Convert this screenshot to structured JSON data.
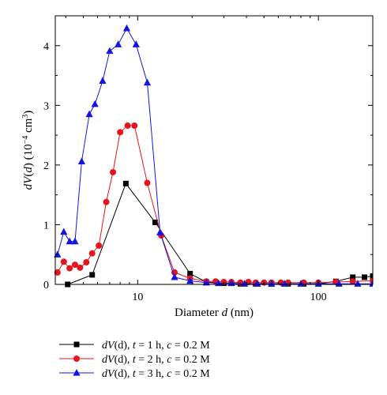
{
  "chart_data": {
    "type": "line",
    "xlabel": {
      "text": "Diameter ",
      "var": "d",
      "unit": " (nm)"
    },
    "ylabel": {
      "text": "dV(d) (10",
      "exp": "−4",
      "unit": " cm",
      "unit_exp": "3",
      "close": ")"
    },
    "xscale": "log",
    "xlim": [
      3.5,
      200
    ],
    "ylim": [
      0,
      4.5
    ],
    "xticks": [
      10,
      100
    ],
    "xtick_labels": [
      "10",
      "100"
    ],
    "yticks": [
      0,
      1,
      2,
      3,
      4
    ],
    "ytick_labels": [
      "0",
      "1",
      "2",
      "3",
      "4"
    ],
    "grid": false,
    "legend_position": "bottom",
    "series": [
      {
        "name": "dV(d), t = 1 h, c = 0.2 M",
        "legend_parts": [
          "dV",
          "(d), ",
          "t",
          " = 1 h, ",
          "c",
          " = 0.2 M"
        ],
        "color": "#000000",
        "marker": "square",
        "x": [
          4.1,
          5.6,
          8.6,
          12.5,
          19.5,
          24,
          30,
          37,
          45,
          55,
          68,
          83,
          100,
          125,
          155,
          180,
          200
        ],
        "y": [
          0.0,
          0.16,
          1.69,
          1.04,
          0.18,
          0.04,
          0.02,
          0.01,
          0.01,
          0.01,
          0.01,
          0.01,
          0.01,
          0.05,
          0.12,
          0.12,
          0.14
        ]
      },
      {
        "name": "dV(d), t = 2 h, c = 0.2 M",
        "legend_parts": [
          "dV",
          "(d), ",
          "t",
          " = 2 h, ",
          "c",
          " = 0.2 M"
        ],
        "color": "#e8141b",
        "marker": "circle",
        "x": [
          3.6,
          3.9,
          4.2,
          4.5,
          4.8,
          5.2,
          5.6,
          6.1,
          6.7,
          7.3,
          8,
          8.8,
          9.6,
          11.3,
          13.5,
          16,
          19.5,
          24,
          27,
          30,
          33,
          37,
          41,
          45,
          50,
          55,
          62,
          68,
          83,
          100,
          125,
          155,
          200
        ],
        "y": [
          0.2,
          0.38,
          0.27,
          0.33,
          0.28,
          0.37,
          0.52,
          0.65,
          1.38,
          1.88,
          2.55,
          2.66,
          2.66,
          1.7,
          0.82,
          0.2,
          0.1,
          0.05,
          0.05,
          0.04,
          0.04,
          0.03,
          0.04,
          0.03,
          0.03,
          0.03,
          0.03,
          0.03,
          0.03,
          0.03,
          0.04,
          0.05,
          0.06
        ]
      },
      {
        "name": "dV(d), t = 3 h, c = 0.2 M",
        "legend_parts": [
          "dV",
          "(d), ",
          "t",
          " = 3 h, ",
          "c",
          " = 0.2 M"
        ],
        "color": "#1414e6",
        "marker": "triangle",
        "x": [
          3.6,
          3.9,
          4.2,
          4.5,
          4.9,
          5.4,
          5.8,
          6.4,
          7,
          7.8,
          8.7,
          9.8,
          11.3,
          13.3,
          16,
          19.5,
          24,
          28,
          33,
          39,
          46,
          55,
          65,
          80,
          100,
          130,
          165,
          200
        ],
        "y": [
          0.5,
          0.88,
          0.72,
          0.72,
          2.06,
          2.85,
          3.02,
          3.41,
          3.91,
          4.02,
          4.29,
          4.02,
          3.38,
          0.87,
          0.12,
          0.06,
          0.03,
          0.02,
          0.02,
          0.01,
          0.01,
          0.01,
          0.01,
          0.01,
          0.01,
          0.01,
          0.01,
          0.01
        ]
      }
    ]
  }
}
